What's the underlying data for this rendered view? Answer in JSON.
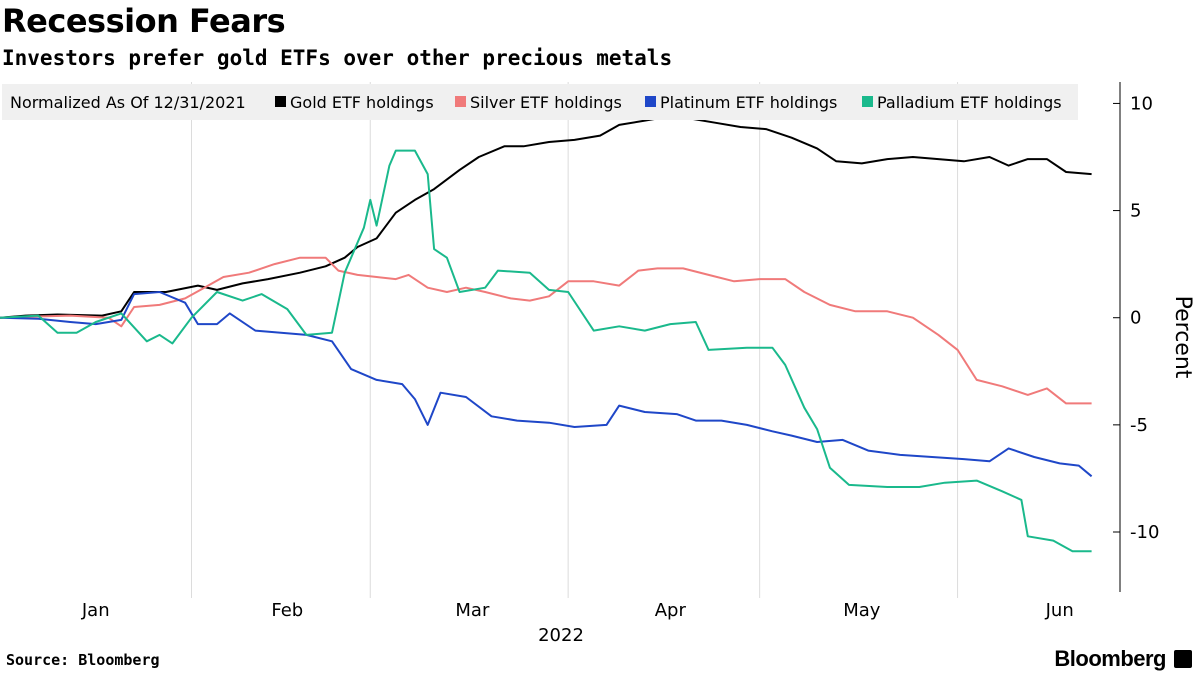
{
  "chart_data": {
    "type": "line",
    "title": "Recession Fears",
    "subtitle": "Investors prefer gold ETFs over other precious metals",
    "ylabel": "Percent",
    "xlabel": "2022",
    "ylim": [
      -12.8,
      11
    ],
    "yticks": [
      10,
      5,
      0,
      -5,
      -10
    ],
    "xlim": [
      "2022-01-01",
      "2022-06-22"
    ],
    "month_labels": [
      {
        "label": "Jan",
        "date": "2022-01-16"
      },
      {
        "label": "Feb",
        "date": "2022-02-15"
      },
      {
        "label": "Mar",
        "date": "2022-03-16"
      },
      {
        "label": "Apr",
        "date": "2022-04-16"
      },
      {
        "label": "May",
        "date": "2022-05-16"
      },
      {
        "label": "Jun",
        "date": "2022-06-16"
      }
    ],
    "month_boundaries": [
      "2022-01-31",
      "2022-02-28",
      "2022-03-31",
      "2022-04-30",
      "2022-05-31"
    ],
    "legend_title": "Normalized As Of 12/31/2021",
    "legend_position": "top-left",
    "grid": false,
    "series": [
      {
        "name": "Gold ETF holdings",
        "color": "#000000",
        "points": [
          [
            "2022-01-01",
            0
          ],
          [
            "2022-01-05",
            0.1
          ],
          [
            "2022-01-10",
            0.15
          ],
          [
            "2022-01-17",
            0.1
          ],
          [
            "2022-01-20",
            0.3
          ],
          [
            "2022-01-22",
            1.2
          ],
          [
            "2022-01-27",
            1.2
          ],
          [
            "2022-02-01",
            1.5
          ],
          [
            "2022-02-04",
            1.3
          ],
          [
            "2022-02-08",
            1.6
          ],
          [
            "2022-02-12",
            1.8
          ],
          [
            "2022-02-17",
            2.1
          ],
          [
            "2022-02-21",
            2.4
          ],
          [
            "2022-02-24",
            2.8
          ],
          [
            "2022-02-26",
            3.3
          ],
          [
            "2022-03-01",
            3.7
          ],
          [
            "2022-03-04",
            4.9
          ],
          [
            "2022-03-07",
            5.5
          ],
          [
            "2022-03-10",
            6.0
          ],
          [
            "2022-03-14",
            6.9
          ],
          [
            "2022-03-17",
            7.5
          ],
          [
            "2022-03-21",
            8.0
          ],
          [
            "2022-03-24",
            8.0
          ],
          [
            "2022-03-28",
            8.2
          ],
          [
            "2022-04-01",
            8.3
          ],
          [
            "2022-04-05",
            8.5
          ],
          [
            "2022-04-08",
            9.0
          ],
          [
            "2022-04-12",
            9.2
          ],
          [
            "2022-04-15",
            9.35
          ],
          [
            "2022-04-19",
            9.3
          ],
          [
            "2022-04-23",
            9.1
          ],
          [
            "2022-04-27",
            8.9
          ],
          [
            "2022-05-01",
            8.8
          ],
          [
            "2022-05-05",
            8.4
          ],
          [
            "2022-05-09",
            7.9
          ],
          [
            "2022-05-12",
            7.3
          ],
          [
            "2022-05-16",
            7.2
          ],
          [
            "2022-05-20",
            7.4
          ],
          [
            "2022-05-24",
            7.5
          ],
          [
            "2022-05-28",
            7.4
          ],
          [
            "2022-06-01",
            7.3
          ],
          [
            "2022-06-05",
            7.5
          ],
          [
            "2022-06-08",
            7.1
          ],
          [
            "2022-06-11",
            7.4
          ],
          [
            "2022-06-14",
            7.4
          ],
          [
            "2022-06-17",
            6.8
          ],
          [
            "2022-06-21",
            6.7
          ]
        ]
      },
      {
        "name": "Silver ETF holdings",
        "color": "#f07a7a",
        "points": [
          [
            "2022-01-01",
            0
          ],
          [
            "2022-01-06",
            0.05
          ],
          [
            "2022-01-12",
            0.1
          ],
          [
            "2022-01-18",
            0.0
          ],
          [
            "2022-01-20",
            -0.4
          ],
          [
            "2022-01-22",
            0.5
          ],
          [
            "2022-01-26",
            0.6
          ],
          [
            "2022-01-30",
            0.9
          ],
          [
            "2022-02-02",
            1.4
          ],
          [
            "2022-02-05",
            1.9
          ],
          [
            "2022-02-09",
            2.1
          ],
          [
            "2022-02-13",
            2.5
          ],
          [
            "2022-02-17",
            2.8
          ],
          [
            "2022-02-21",
            2.8
          ],
          [
            "2022-02-23",
            2.2
          ],
          [
            "2022-02-26",
            2.0
          ],
          [
            "2022-03-01",
            1.9
          ],
          [
            "2022-03-04",
            1.8
          ],
          [
            "2022-03-06",
            2.0
          ],
          [
            "2022-03-09",
            1.4
          ],
          [
            "2022-03-12",
            1.2
          ],
          [
            "2022-03-15",
            1.4
          ],
          [
            "2022-03-18",
            1.2
          ],
          [
            "2022-03-22",
            0.9
          ],
          [
            "2022-03-25",
            0.8
          ],
          [
            "2022-03-28",
            1.0
          ],
          [
            "2022-03-31",
            1.7
          ],
          [
            "2022-04-04",
            1.7
          ],
          [
            "2022-04-08",
            1.5
          ],
          [
            "2022-04-11",
            2.2
          ],
          [
            "2022-04-14",
            2.3
          ],
          [
            "2022-04-18",
            2.3
          ],
          [
            "2022-04-22",
            2.0
          ],
          [
            "2022-04-26",
            1.7
          ],
          [
            "2022-04-30",
            1.8
          ],
          [
            "2022-05-04",
            1.8
          ],
          [
            "2022-05-07",
            1.2
          ],
          [
            "2022-05-11",
            0.6
          ],
          [
            "2022-05-15",
            0.3
          ],
          [
            "2022-05-20",
            0.3
          ],
          [
            "2022-05-24",
            0.0
          ],
          [
            "2022-05-28",
            -0.8
          ],
          [
            "2022-05-31",
            -1.5
          ],
          [
            "2022-06-03",
            -2.9
          ],
          [
            "2022-06-07",
            -3.2
          ],
          [
            "2022-06-11",
            -3.6
          ],
          [
            "2022-06-14",
            -3.3
          ],
          [
            "2022-06-17",
            -4.0
          ],
          [
            "2022-06-21",
            -4.0
          ]
        ]
      },
      {
        "name": "Platinum ETF holdings",
        "color": "#1f47c8",
        "points": [
          [
            "2022-01-01",
            0
          ],
          [
            "2022-01-07",
            -0.05
          ],
          [
            "2022-01-12",
            -0.2
          ],
          [
            "2022-01-16",
            -0.3
          ],
          [
            "2022-01-20",
            -0.1
          ],
          [
            "2022-01-22",
            1.1
          ],
          [
            "2022-01-26",
            1.2
          ],
          [
            "2022-01-30",
            0.7
          ],
          [
            "2022-02-01",
            -0.3
          ],
          [
            "2022-02-04",
            -0.3
          ],
          [
            "2022-02-06",
            0.2
          ],
          [
            "2022-02-10",
            -0.6
          ],
          [
            "2022-02-14",
            -0.7
          ],
          [
            "2022-02-18",
            -0.8
          ],
          [
            "2022-02-22",
            -1.1
          ],
          [
            "2022-02-25",
            -2.4
          ],
          [
            "2022-03-01",
            -2.9
          ],
          [
            "2022-03-05",
            -3.1
          ],
          [
            "2022-03-07",
            -3.8
          ],
          [
            "2022-03-09",
            -5.0
          ],
          [
            "2022-03-11",
            -3.5
          ],
          [
            "2022-03-15",
            -3.7
          ],
          [
            "2022-03-19",
            -4.6
          ],
          [
            "2022-03-23",
            -4.8
          ],
          [
            "2022-03-28",
            -4.9
          ],
          [
            "2022-04-01",
            -5.1
          ],
          [
            "2022-04-06",
            -5.0
          ],
          [
            "2022-04-08",
            -4.1
          ],
          [
            "2022-04-12",
            -4.4
          ],
          [
            "2022-04-17",
            -4.5
          ],
          [
            "2022-04-20",
            -4.8
          ],
          [
            "2022-04-24",
            -4.8
          ],
          [
            "2022-04-28",
            -5.0
          ],
          [
            "2022-05-02",
            -5.3
          ],
          [
            "2022-05-05",
            -5.5
          ],
          [
            "2022-05-09",
            -5.8
          ],
          [
            "2022-05-13",
            -5.7
          ],
          [
            "2022-05-17",
            -6.2
          ],
          [
            "2022-05-22",
            -6.4
          ],
          [
            "2022-05-27",
            -6.5
          ],
          [
            "2022-06-01",
            -6.6
          ],
          [
            "2022-06-05",
            -6.7
          ],
          [
            "2022-06-08",
            -6.1
          ],
          [
            "2022-06-12",
            -6.5
          ],
          [
            "2022-06-16",
            -6.8
          ],
          [
            "2022-06-19",
            -6.9
          ],
          [
            "2022-06-21",
            -7.4
          ]
        ]
      },
      {
        "name": "Palladium ETF holdings",
        "color": "#1ab98c",
        "points": [
          [
            "2022-01-01",
            0
          ],
          [
            "2022-01-07",
            0.1
          ],
          [
            "2022-01-10",
            -0.7
          ],
          [
            "2022-01-13",
            -0.7
          ],
          [
            "2022-01-16",
            -0.2
          ],
          [
            "2022-01-20",
            0.2
          ],
          [
            "2022-01-24",
            -1.1
          ],
          [
            "2022-01-26",
            -0.8
          ],
          [
            "2022-01-28",
            -1.2
          ],
          [
            "2022-01-31",
            0.0
          ],
          [
            "2022-02-04",
            1.2
          ],
          [
            "2022-02-08",
            0.8
          ],
          [
            "2022-02-11",
            1.1
          ],
          [
            "2022-02-15",
            0.4
          ],
          [
            "2022-02-18",
            -0.8
          ],
          [
            "2022-02-22",
            -0.7
          ],
          [
            "2022-02-24",
            2.1
          ],
          [
            "2022-02-27",
            4.2
          ],
          [
            "2022-02-28",
            5.5
          ],
          [
            "2022-03-01",
            4.3
          ],
          [
            "2022-03-03",
            7.1
          ],
          [
            "2022-03-04",
            7.8
          ],
          [
            "2022-03-07",
            7.8
          ],
          [
            "2022-03-09",
            6.7
          ],
          [
            "2022-03-10",
            3.2
          ],
          [
            "2022-03-12",
            2.8
          ],
          [
            "2022-03-14",
            1.2
          ],
          [
            "2022-03-18",
            1.4
          ],
          [
            "2022-03-20",
            2.2
          ],
          [
            "2022-03-25",
            2.1
          ],
          [
            "2022-03-28",
            1.3
          ],
          [
            "2022-03-31",
            1.2
          ],
          [
            "2022-04-04",
            -0.6
          ],
          [
            "2022-04-08",
            -0.4
          ],
          [
            "2022-04-12",
            -0.6
          ],
          [
            "2022-04-16",
            -0.3
          ],
          [
            "2022-04-20",
            -0.2
          ],
          [
            "2022-04-22",
            -1.5
          ],
          [
            "2022-04-28",
            -1.4
          ],
          [
            "2022-05-02",
            -1.4
          ],
          [
            "2022-05-04",
            -2.2
          ],
          [
            "2022-05-07",
            -4.2
          ],
          [
            "2022-05-09",
            -5.2
          ],
          [
            "2022-05-11",
            -7.0
          ],
          [
            "2022-05-14",
            -7.8
          ],
          [
            "2022-05-20",
            -7.9
          ],
          [
            "2022-05-25",
            -7.9
          ],
          [
            "2022-05-29",
            -7.7
          ],
          [
            "2022-06-03",
            -7.6
          ],
          [
            "2022-06-07",
            -8.1
          ],
          [
            "2022-06-10",
            -8.5
          ],
          [
            "2022-06-11",
            -10.2
          ],
          [
            "2022-06-15",
            -10.4
          ],
          [
            "2022-06-18",
            -10.9
          ],
          [
            "2022-06-21",
            -10.9
          ]
        ]
      }
    ]
  },
  "footer": {
    "source": "Source: Bloomberg",
    "brand": "Bloomberg"
  }
}
